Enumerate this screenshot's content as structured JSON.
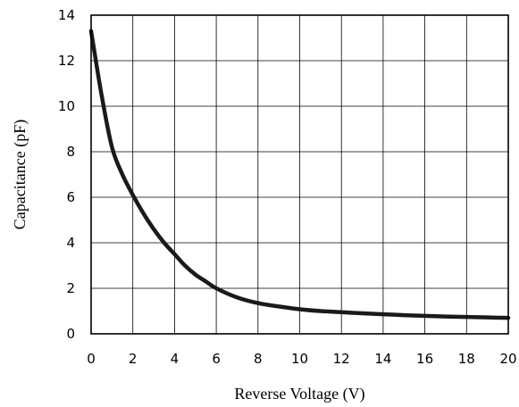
{
  "chart_data": {
    "type": "line",
    "title": "",
    "xlabel": "Reverse Voltage (V)",
    "ylabel": "Capacitance (pF)",
    "xlim": [
      0,
      20
    ],
    "ylim": [
      0,
      14
    ],
    "xticks": [
      0,
      2,
      4,
      6,
      8,
      10,
      12,
      14,
      16,
      18,
      20
    ],
    "yticks": [
      0,
      2,
      4,
      6,
      8,
      10,
      12,
      14
    ],
    "x_tick_labels": [
      "0",
      "2",
      "4",
      "6",
      "8",
      "10",
      "12",
      "14",
      "16",
      "18",
      "20"
    ],
    "y_tick_labels": [
      "0",
      "2",
      "4",
      "6",
      "8",
      "10",
      "12",
      "14"
    ],
    "grid": true,
    "legend": "none",
    "series": [
      {
        "color": "#1a1a1a",
        "x": [
          0,
          0.5,
          1,
          1.5,
          2,
          2.5,
          3,
          3.5,
          4,
          4.5,
          5,
          5.5,
          6,
          7,
          8,
          9,
          10,
          11,
          12,
          13,
          14,
          15,
          16,
          17,
          18,
          19,
          20
        ],
        "y": [
          13.3,
          10.5,
          8.2,
          7.0,
          6.1,
          5.3,
          4.6,
          4.0,
          3.5,
          3.0,
          2.6,
          2.3,
          2.0,
          1.6,
          1.35,
          1.2,
          1.08,
          1.0,
          0.95,
          0.9,
          0.86,
          0.82,
          0.79,
          0.76,
          0.74,
          0.72,
          0.7
        ]
      }
    ]
  }
}
